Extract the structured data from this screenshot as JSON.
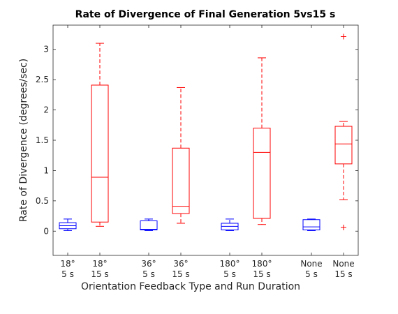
{
  "chart_data": {
    "type": "box",
    "title": "Rate of Divergence of Final Generation 5vs15 s",
    "xlabel": "Orientation Feedback Type and Run Duration",
    "ylabel": "Rate of Divergence (degrees/sec)",
    "ylim": [
      -0.4,
      3.4
    ],
    "yticks": [
      0,
      0.5,
      1,
      1.5,
      2,
      2.5,
      3
    ],
    "yticklabels": [
      "0",
      "0.5",
      "1",
      "1.5",
      "2",
      "2.5",
      "3"
    ],
    "colors": {
      "5 s": "#0000ff",
      "15 s": "#ff0000"
    },
    "categories": [
      {
        "line1": "18°",
        "line2": "5 s",
        "group": "5 s",
        "min": 0.01,
        "q1": 0.04,
        "median": 0.09,
        "q3": 0.14,
        "max": 0.2,
        "outliers": []
      },
      {
        "line1": "18°",
        "line2": "15 s",
        "group": "15 s",
        "min": 0.08,
        "q1": 0.15,
        "median": 0.89,
        "q3": 2.41,
        "max": 3.1,
        "outliers": []
      },
      {
        "line1": "36°",
        "line2": "5 s",
        "group": "5 s",
        "min": 0.01,
        "q1": 0.02,
        "median": 0.03,
        "q3": 0.17,
        "max": 0.2,
        "outliers": []
      },
      {
        "line1": "36°",
        "line2": "15 s",
        "group": "15 s",
        "min": 0.13,
        "q1": 0.29,
        "median": 0.41,
        "q3": 1.37,
        "max": 2.37,
        "outliers": []
      },
      {
        "line1": "180°",
        "line2": "5 s",
        "group": "5 s",
        "min": 0.01,
        "q1": 0.02,
        "median": 0.08,
        "q3": 0.13,
        "max": 0.2,
        "outliers": []
      },
      {
        "line1": "180°",
        "line2": "15 s",
        "group": "15 s",
        "min": 0.11,
        "q1": 0.21,
        "median": 1.3,
        "q3": 1.7,
        "max": 2.86,
        "outliers": []
      },
      {
        "line1": "None",
        "line2": "5 s",
        "group": "5 s",
        "min": 0.01,
        "q1": 0.02,
        "median": 0.07,
        "q3": 0.19,
        "max": 0.2,
        "outliers": []
      },
      {
        "line1": "None",
        "line2": "15 s",
        "group": "15 s",
        "min": 0.52,
        "q1": 1.11,
        "median": 1.44,
        "q3": 1.73,
        "max": 1.81,
        "outliers": [
          0.06,
          3.21
        ]
      }
    ]
  }
}
